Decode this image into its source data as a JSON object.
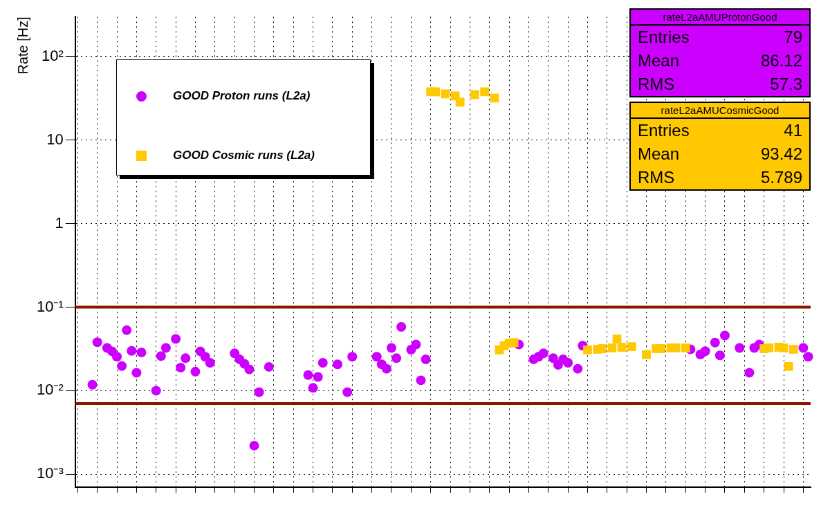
{
  "chart_data": {
    "type": "scatter",
    "ylabel": "Rate [Hz]",
    "log": true,
    "grid": true,
    "legend": "top left",
    "ylim": [
      0.0007,
      300
    ],
    "yticks": [
      {
        "value": 0.001,
        "label": "10⁻³"
      },
      {
        "value": 0.01,
        "label": "10⁻²"
      },
      {
        "value": 0.1,
        "label": "10⁻¹"
      },
      1,
      10,
      {
        "value": 100,
        "label": "10²"
      }
    ],
    "categories": [
      null,
      null,
      null,
      null,
      null,
      null,
      null,
      null,
      null,
      null,
      null,
      null,
      null,
      null,
      null,
      null,
      null,
      null,
      null,
      null,
      null,
      null,
      null,
      null,
      null,
      null,
      null,
      null,
      null,
      null,
      null,
      null,
      null,
      null,
      null,
      null,
      null,
      null,
      null,
      null,
      null,
      null,
      null,
      null,
      null,
      null,
      null,
      null,
      null,
      null,
      null,
      null,
      null,
      null,
      null,
      null,
      null,
      null,
      null,
      null,
      null,
      null,
      null,
      null,
      null,
      null,
      null,
      null,
      null,
      null,
      null,
      null,
      null,
      null,
      null,
      null,
      null,
      null,
      null,
      null,
      null,
      null,
      null,
      null,
      null,
      null,
      null,
      null,
      null,
      null,
      null,
      null,
      null,
      null,
      null,
      null,
      null,
      null,
      null,
      null,
      null,
      null,
      null,
      null,
      null,
      null,
      null,
      null,
      null,
      null,
      null,
      null,
      null,
      null,
      null,
      null,
      null,
      null,
      null,
      null,
      null,
      null,
      null,
      null,
      null,
      null,
      null,
      null,
      null,
      null,
      null,
      null,
      null,
      null,
      null,
      null,
      null,
      null,
      null,
      null,
      null,
      null,
      null,
      null,
      null,
      null,
      null,
      null,
      null,
      null
    ],
    "series": [
      {
        "name": "GOOD Proton runs (L2a)",
        "color": "#cc00ff",
        "marker": "circle",
        "values": [
          null,
          null,
          null,
          0.0118,
          0.038,
          null,
          0.0325,
          0.0296,
          0.0255,
          0.0197,
          0.053,
          0.03,
          0.0164,
          0.0287,
          null,
          null,
          0.01,
          0.026,
          0.0325,
          null,
          0.0417,
          0.0189,
          0.0245,
          null,
          0.0169,
          0.0296,
          0.0255,
          0.0216,
          null,
          null,
          null,
          null,
          0.028,
          0.0238,
          0.021,
          0.018,
          0.0022,
          0.0096,
          null,
          0.0193,
          null,
          null,
          null,
          null,
          null,
          null,
          null,
          0.0154,
          0.0108,
          0.0146,
          0.0216,
          null,
          null,
          0.0207,
          null,
          0.0096,
          0.0255,
          null,
          null,
          null,
          null,
          0.0255,
          0.0207,
          0.0183,
          0.0325,
          0.0245,
          0.058,
          null,
          0.031,
          0.0357,
          0.0133,
          0.0237,
          null,
          null,
          null,
          null,
          null,
          null,
          null,
          null,
          null,
          null,
          null,
          null,
          null,
          null,
          null,
          null,
          null,
          null,
          0.0357,
          null,
          null,
          0.0237,
          0.0255,
          0.028,
          null,
          0.0245,
          0.0204,
          0.0238,
          0.0216,
          null,
          0.0183,
          0.0346,
          null,
          null,
          null,
          null,
          null,
          null,
          null,
          null,
          null,
          null,
          null,
          null,
          null,
          null,
          null,
          null,
          null,
          null,
          null,
          null,
          null,
          0.0313,
          null,
          0.0271,
          0.0297,
          null,
          0.0377,
          0.0265,
          0.0458,
          null,
          null,
          0.0325,
          null,
          0.0164,
          0.0325,
          0.0357,
          null,
          null,
          null,
          null,
          null,
          null,
          null,
          null,
          0.0325,
          0.0255
        ]
      },
      {
        "name": "GOOD Cosmic runs (L2a)",
        "color": "#ffc800",
        "marker": "square",
        "values": [
          null,
          null,
          null,
          null,
          null,
          null,
          null,
          null,
          null,
          null,
          null,
          null,
          null,
          null,
          null,
          null,
          null,
          null,
          null,
          null,
          null,
          null,
          null,
          null,
          null,
          null,
          null,
          null,
          null,
          null,
          null,
          null,
          null,
          null,
          null,
          null,
          null,
          null,
          null,
          null,
          null,
          null,
          null,
          null,
          null,
          null,
          null,
          null,
          null,
          null,
          null,
          null,
          null,
          null,
          null,
          null,
          null,
          null,
          null,
          null,
          null,
          null,
          null,
          null,
          null,
          null,
          null,
          null,
          null,
          null,
          null,
          null,
          37.8,
          37.8,
          null,
          35.7,
          null,
          33.7,
          28.5,
          null,
          null,
          35,
          null,
          37.8,
          null,
          31.9,
          0.0308,
          0.0345,
          0.037,
          0.0377,
          null,
          null,
          null,
          null,
          null,
          null,
          null,
          null,
          null,
          null,
          null,
          null,
          null,
          null,
          0.0308,
          null,
          0.0313,
          0.0319,
          null,
          0.0325,
          0.0415,
          0.0331,
          null,
          0.0337,
          null,
          null,
          0.027,
          null,
          0.0319,
          0.0319,
          null,
          0.0325,
          0.0325,
          null,
          0.0325,
          null,
          null,
          null,
          null,
          null,
          null,
          null,
          null,
          null,
          null,
          null,
          null,
          null,
          null,
          null,
          0.0319,
          0.0325,
          null,
          0.0331,
          0.0325,
          0.0195,
          0.0313,
          null,
          null,
          null
        ]
      }
    ],
    "ref_lines": [
      {
        "axis": "y",
        "value": 0.1,
        "color": "#8b1400"
      },
      {
        "axis": "y",
        "value": 0.007,
        "color": "#8b1400"
      }
    ],
    "annotations": [
      "rateL2aAMUProtonGood",
      "Entries 79",
      "Mean 86.12",
      "RMS 57.3",
      "rateL2aAMUCosmicGood",
      "Entries 41",
      "Mean 93.42",
      "RMS 5.789"
    ]
  }
}
